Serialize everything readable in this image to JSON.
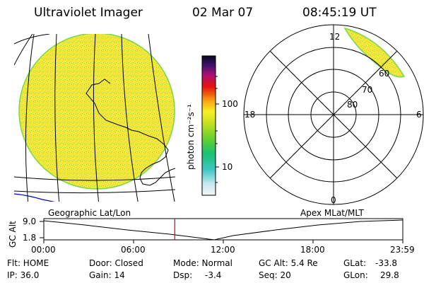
{
  "header": {
    "instrument": "Ultraviolet Imager",
    "date": "02 Mar 07",
    "time": "08:45:19 UT"
  },
  "colorbar": {
    "unit_label": "photon cm⁻²s⁻¹",
    "ticks": [
      "100",
      "10"
    ]
  },
  "geo_map": {
    "caption": "Geographic Lat/Lon"
  },
  "polar_plot": {
    "caption": "Apex MLat/MLT",
    "mlt_labels": [
      "12",
      "18",
      "6",
      "0"
    ],
    "lat_labels": [
      "60",
      "70",
      "80"
    ]
  },
  "altitude_plot": {
    "ylabel": "GC Alt",
    "yticks": [
      "9.0",
      "1.8"
    ],
    "xticks": [
      "00:00",
      "06:00",
      "12:00",
      "18:00",
      "23:59"
    ],
    "current_time_hours": 8.755
  },
  "status": {
    "flt": "Flt: HOME",
    "ip": "IP: 36.0",
    "door": "Door: Closed",
    "gain": "Gain: 14",
    "mode": "Mode: Normal",
    "dsp_label": "Dsp:",
    "dsp_value": "-3.4",
    "gc_alt": "GC Alt: 5.4 Re",
    "seq": "Seq: 20",
    "glat_label": "GLat:",
    "glat_value": "-33.8",
    "glon_label": "GLon:",
    "glon_value": "29.8"
  },
  "colors": {
    "disk_fill": "#f0e838",
    "disk_edge": "#7ad64a",
    "coastline": "#0000c8"
  }
}
